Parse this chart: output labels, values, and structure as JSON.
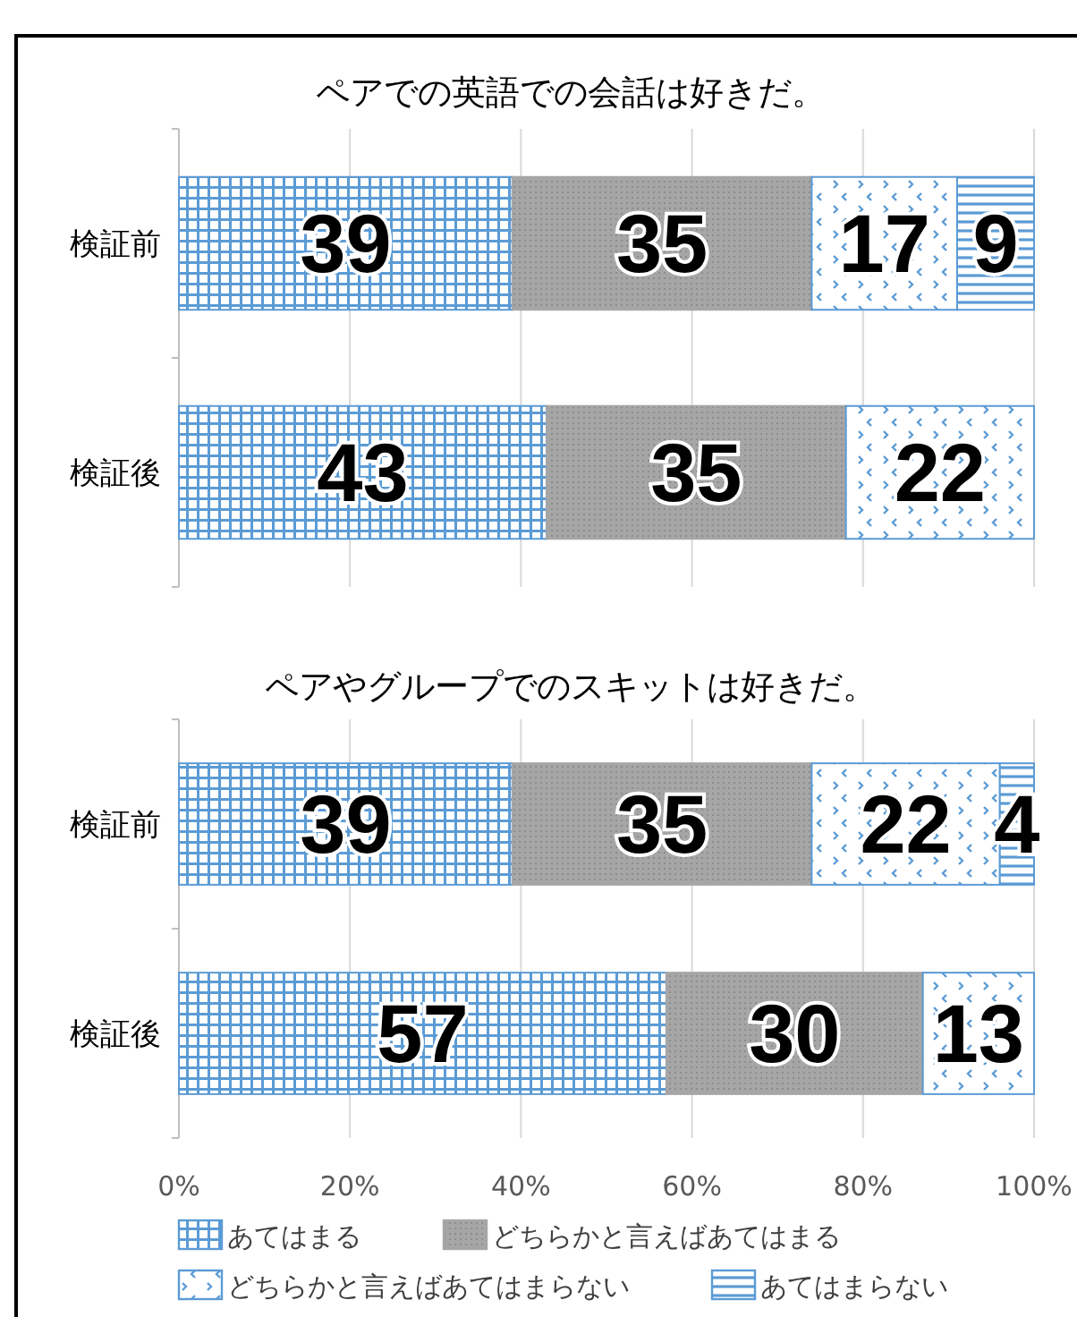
{
  "chart_data": [
    {
      "type": "bar",
      "orientation": "horizontal",
      "stacked": true,
      "title": "ペアでの英語での会話は好きだ。",
      "categories": [
        "検証前",
        "検証後"
      ],
      "xlim": [
        0,
        100
      ],
      "xticks": [
        0,
        20,
        40,
        60,
        80,
        100
      ],
      "tick_labels": "y",
      "grid": "x",
      "data_labels": true,
      "legend": false,
      "series": [
        {
          "color": "#5b9bd5",
          "values": [
            39,
            43
          ]
        },
        {
          "color": "#a6a6a6",
          "values": [
            35,
            35
          ]
        },
        {
          "color": "#5b9bd5",
          "values": [
            17,
            22
          ]
        },
        {
          "color": "#5b9bd5",
          "values": [
            9,
            null
          ]
        }
      ]
    },
    {
      "type": "bar",
      "orientation": "horizontal",
      "stacked": true,
      "title": "ペアやグループでのスキットは好きだ。",
      "categories": [
        "検証前",
        "検証後"
      ],
      "xlim": [
        0,
        100
      ],
      "xticks": [
        {
          "value": 0,
          "label": "0%"
        },
        {
          "value": 20,
          "label": "20%"
        },
        {
          "value": 40,
          "label": "40%"
        },
        {
          "value": 60,
          "label": "60%"
        },
        {
          "value": 80,
          "label": "80%"
        },
        {
          "value": 100,
          "label": "100%"
        }
      ],
      "grid": "x",
      "data_labels": true,
      "legend": "bottom",
      "series": [
        {
          "name": "あてはまる",
          "color": "#5b9bd5",
          "values": [
            39,
            57
          ]
        },
        {
          "name": "どちらかと言えばあてはまる",
          "color": "#a6a6a6",
          "values": [
            35,
            30
          ]
        },
        {
          "name": "どちらかと言えばあてはまらない",
          "color": "#5b9bd5",
          "values": [
            22,
            13
          ]
        },
        {
          "name": "あてはまらない",
          "color": "#5b9bd5",
          "values": [
            4,
            null
          ]
        }
      ]
    }
  ]
}
